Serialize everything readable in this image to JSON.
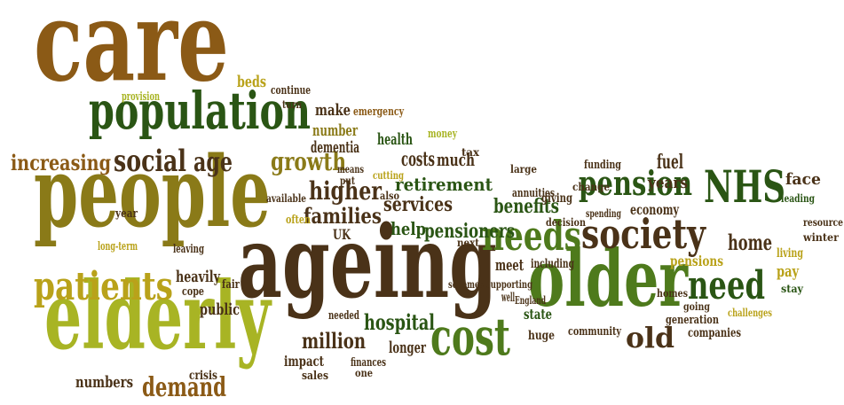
{
  "words": [
    "care",
    "population",
    "people",
    "elderly",
    "ageing",
    "older",
    "cost",
    "NHS",
    "needs",
    "society",
    "need",
    "pension",
    "patients",
    "social",
    "age",
    "increasing",
    "demand",
    "million",
    "hospital",
    "old",
    "growth",
    "higher",
    "families",
    "services",
    "retirement",
    "help",
    "pensioners",
    "benefits",
    "costs",
    "much",
    "health",
    "number",
    "make",
    "emergency",
    "beds",
    "continue",
    "turn",
    "provision",
    "money",
    "tax",
    "fuel",
    "years",
    "funding",
    "change",
    "face",
    "leading",
    "resource",
    "winter",
    "home",
    "living",
    "pay",
    "stay",
    "pensions",
    "homes",
    "going",
    "generation",
    "challenges",
    "companies",
    "community",
    "economy",
    "spending",
    "decision",
    "giving",
    "large",
    "annuities",
    "including",
    "meet",
    "next",
    "UK",
    "often",
    "available",
    "put",
    "means",
    "cutting",
    "also",
    "long-term",
    "leaving",
    "heavily",
    "fair",
    "public",
    "cope",
    "crisis",
    "numbers",
    "impact",
    "needed",
    "longer",
    "finances",
    "sales",
    "one",
    "state",
    "huge",
    "well",
    "England",
    "supporting",
    "schemes",
    "year",
    "dementia"
  ]
}
